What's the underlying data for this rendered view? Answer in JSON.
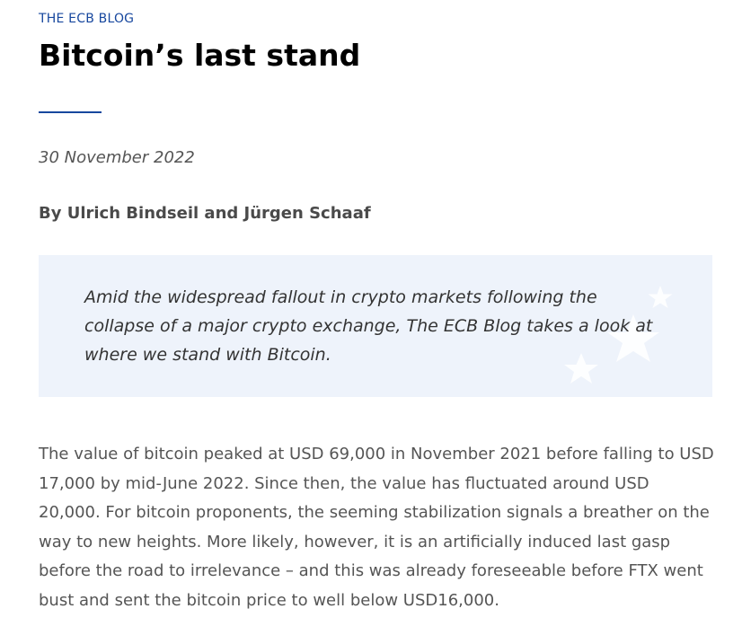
{
  "header": {
    "kicker": "THE ECB BLOG",
    "title": "Bitcoin’s last stand"
  },
  "meta": {
    "date": "30 November 2022",
    "byline": "By Ulrich Bindseil and Jürgen Schaaf"
  },
  "summary": {
    "text": "Amid the widespread fallout in crypto markets following the collapse of a major crypto exchange, The ECB Blog takes a look at where we stand with Bitcoin."
  },
  "article": {
    "paragraph_1": "The value of bitcoin peaked at USD 69,000 in November 2021 before falling to USD 17,000 by mid-June 2022. Since then, the value has fluctuated around USD 20,000. For bitcoin proponents, the seeming stabilization signals a breather on the way to new heights. More likely, however, it is an artificially induced last gasp before the road to irrelevance – and this was already foreseeable before FTX went bust and sent the bitcoin price to well below USD16,000."
  },
  "colors": {
    "accent": "#17479e",
    "summary_background": "#eef3fb",
    "star_watermark": "#ffffff"
  },
  "icons": {
    "summary_watermark": "eu-stars-watermark-icon"
  }
}
